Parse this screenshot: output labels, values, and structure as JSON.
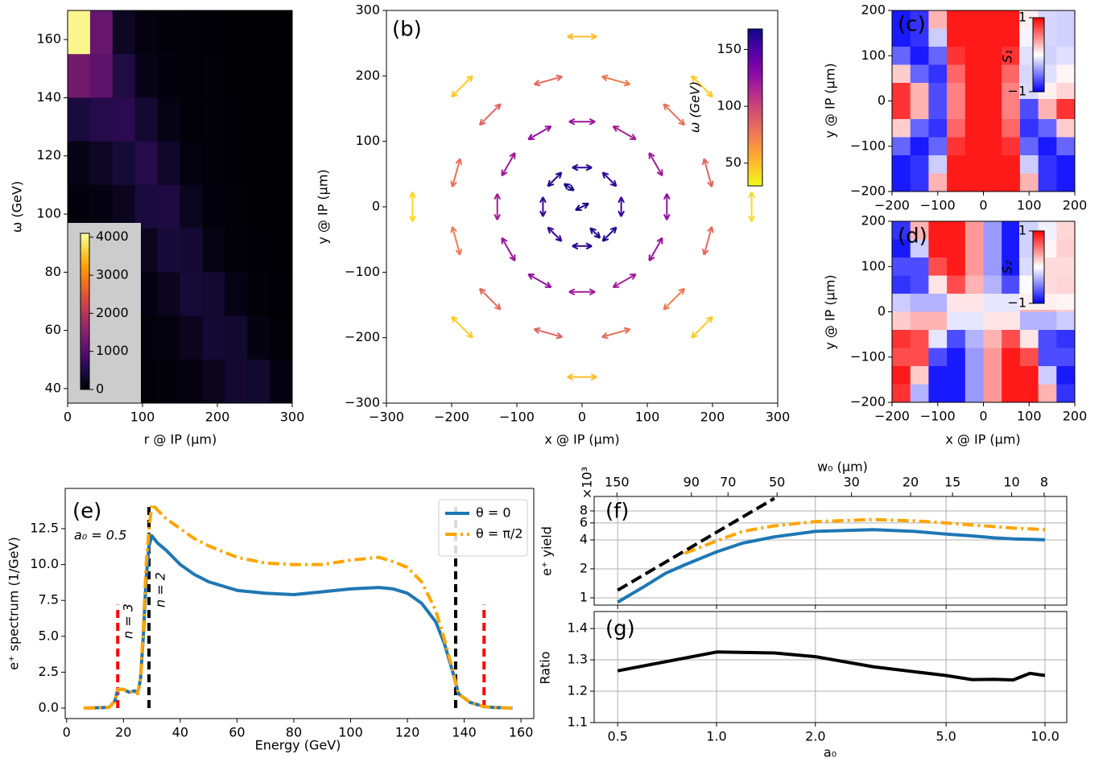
{
  "chart_data": [
    {
      "type": "heatmap",
      "panel_label": "(a)",
      "xlabel": "r @ IP (μm)",
      "ylabel": "ω (GeV)",
      "xlim": [
        0,
        300
      ],
      "ylim": [
        35,
        170
      ],
      "xticks": [
        0,
        100,
        200,
        300
      ],
      "yticks": [
        40,
        60,
        80,
        100,
        120,
        140,
        160
      ],
      "colormap": "inferno",
      "clim": [
        0,
        4100
      ],
      "cticks": [
        0,
        1000,
        2000,
        3000,
        4000
      ],
      "z": [
        [
          4000,
          1200,
          250,
          80,
          40,
          25,
          15,
          10,
          10,
          10
        ],
        [
          1300,
          1100,
          500,
          150,
          60,
          30,
          20,
          10,
          10,
          10
        ],
        [
          450,
          550,
          600,
          350,
          120,
          40,
          20,
          15,
          10,
          10
        ],
        [
          150,
          250,
          400,
          550,
          300,
          80,
          30,
          15,
          10,
          10
        ],
        [
          60,
          100,
          200,
          450,
          480,
          200,
          60,
          20,
          10,
          10
        ],
        [
          30,
          50,
          100,
          200,
          420,
          380,
          120,
          30,
          15,
          10
        ],
        [
          20,
          30,
          50,
          100,
          200,
          400,
          350,
          120,
          30,
          15
        ],
        [
          15,
          20,
          30,
          50,
          90,
          200,
          380,
          330,
          100,
          30
        ],
        [
          10,
          15,
          20,
          30,
          50,
          90,
          180,
          350,
          320,
          100
        ]
      ]
    },
    {
      "type": "quiver",
      "panel_label": "(b)",
      "xlabel": "x @ IP (μm)",
      "ylabel": "y @ IP (μm)",
      "xlim": [
        -300,
        300
      ],
      "ylim": [
        -300,
        300
      ],
      "xticks": [
        {
          "value": -300,
          "label": "−300"
        },
        {
          "value": -200,
          "label": "−200"
        },
        {
          "value": -100,
          "label": "−100"
        },
        0,
        100,
        200,
        300
      ],
      "yticks": [
        {
          "value": -300,
          "label": "−300"
        },
        {
          "value": -200,
          "label": "−200"
        },
        {
          "value": -100,
          "label": "−100"
        },
        0,
        100,
        200,
        300
      ],
      "colormap": "plasma_r",
      "clim": [
        30,
        168
      ],
      "cticks": [
        50,
        100,
        150
      ],
      "clabel": "ω (GeV)",
      "x": [
        60,
        42,
        0,
        -42,
        -60,
        -42,
        0,
        42,
        130,
        113,
        65,
        0,
        -65,
        -113,
        -130,
        -113,
        -65,
        0,
        65,
        113,
        193,
        141,
        52,
        -52,
        -141,
        -193,
        -193,
        -141,
        -52,
        52,
        141,
        193,
        260,
        184,
        0,
        -184,
        -260,
        -184,
        0,
        184,
        0,
        20,
        -20
      ],
      "y": [
        0,
        42,
        60,
        42,
        0,
        -42,
        -60,
        -42,
        0,
        65,
        113,
        130,
        113,
        65,
        0,
        -65,
        -113,
        -130,
        -113,
        -65,
        52,
        141,
        193,
        193,
        141,
        52,
        -52,
        -141,
        -193,
        -193,
        -141,
        -52,
        0,
        184,
        260,
        184,
        0,
        -184,
        -260,
        -184,
        0,
        -40,
        30
      ],
      "u": [
        0,
        -21,
        -30,
        -21,
        0,
        21,
        30,
        21,
        0,
        -20,
        -35,
        -40,
        -35,
        -20,
        0,
        20,
        35,
        40,
        35,
        20,
        -12,
        -32,
        -43,
        -43,
        -32,
        -12,
        12,
        32,
        43,
        43,
        32,
        12,
        0,
        -32,
        -45,
        -32,
        0,
        32,
        45,
        32,
        20,
        -15,
        15
      ],
      "v": [
        30,
        21,
        0,
        -21,
        -30,
        -21,
        0,
        21,
        40,
        35,
        20,
        0,
        -20,
        -35,
        -40,
        -35,
        -20,
        0,
        20,
        35,
        43,
        32,
        12,
        -12,
        -32,
        -43,
        -43,
        -32,
        -12,
        12,
        32,
        43,
        45,
        32,
        0,
        -32,
        -45,
        -32,
        0,
        32,
        10,
        15,
        -10
      ],
      "c": [
        155,
        158,
        160,
        162,
        155,
        158,
        160,
        162,
        125,
        120,
        118,
        122,
        125,
        120,
        118,
        122,
        125,
        120,
        118,
        122,
        85,
        80,
        75,
        82,
        85,
        80,
        75,
        82,
        85,
        80,
        75,
        82,
        40,
        45,
        50,
        45,
        40,
        45,
        50,
        45,
        165,
        163,
        166
      ]
    },
    {
      "type": "heatmap",
      "panel_label": "(c)",
      "xlabel": "x @ IP (μm)",
      "ylabel": "y @ IP (μm)",
      "xlim": [
        -200,
        200
      ],
      "ylim": [
        -200,
        200
      ],
      "xticks": [
        {
          "value": -200,
          "label": "−200"
        },
        {
          "value": -100,
          "label": "−100"
        },
        0,
        100,
        200
      ],
      "yticks": [
        {
          "value": -200,
          "label": "−200"
        },
        {
          "value": -100,
          "label": "−100"
        },
        0,
        100,
        200
      ],
      "colormap": "bwr",
      "clim": [
        -1,
        1
      ],
      "cticks": [
        {
          "value": -1,
          "label": "−1"
        },
        1
      ],
      "clabel": "S₁",
      "z": [
        [
          -0.9,
          -0.8,
          0.3,
          0.9,
          0.9,
          0.9,
          0.9,
          0.3,
          -0.8,
          -0.9
        ],
        [
          -0.9,
          -0.8,
          -0.2,
          0.9,
          0.9,
          0.9,
          0.9,
          -0.2,
          -0.8,
          -0.9
        ],
        [
          -0.6,
          -0.9,
          -0.6,
          0.8,
          0.9,
          0.9,
          0.8,
          -0.6,
          -0.9,
          -0.6
        ],
        [
          0.2,
          -0.6,
          -0.8,
          0.6,
          0.9,
          0.9,
          0.6,
          -0.8,
          -0.6,
          0.2
        ],
        [
          0.8,
          0.3,
          -0.7,
          0.5,
          0.9,
          0.9,
          0.5,
          -0.7,
          0.3,
          0.8
        ],
        [
          0.8,
          0.3,
          -0.7,
          0.5,
          0.9,
          0.9,
          0.5,
          -0.7,
          0.3,
          0.8
        ],
        [
          0.2,
          -0.6,
          -0.8,
          0.6,
          0.9,
          0.9,
          0.6,
          -0.8,
          -0.6,
          0.2
        ],
        [
          -0.6,
          -0.9,
          -0.6,
          0.8,
          0.9,
          0.9,
          0.8,
          -0.6,
          -0.9,
          -0.6
        ],
        [
          -0.9,
          -0.8,
          -0.2,
          0.9,
          0.9,
          0.9,
          0.9,
          -0.2,
          -0.8,
          -0.9
        ],
        [
          -0.9,
          -0.8,
          0.3,
          0.9,
          0.9,
          0.9,
          0.9,
          0.3,
          -0.8,
          -0.9
        ]
      ]
    },
    {
      "type": "heatmap",
      "panel_label": "(d)",
      "xlabel": "x @ IP (μm)",
      "ylabel": "y @ IP (μm)",
      "xlim": [
        -200,
        200
      ],
      "ylim": [
        -200,
        200
      ],
      "xticks": [
        {
          "value": -200,
          "label": "−200"
        },
        {
          "value": -100,
          "label": "−100"
        },
        0,
        100,
        200
      ],
      "yticks": [
        {
          "value": -200,
          "label": "−200"
        },
        {
          "value": -100,
          "label": "−100"
        },
        0,
        100,
        200
      ],
      "colormap": "bwr",
      "clim": [
        -1,
        1
      ],
      "cticks": [
        {
          "value": -1,
          "label": "−1"
        },
        1
      ],
      "clabel": "S₂",
      "z": [
        [
          -0.8,
          0.3,
          0.9,
          0.9,
          0.4,
          -0.4,
          -0.9,
          -0.9,
          -0.3,
          0.8
        ],
        [
          -0.9,
          -0.2,
          0.9,
          0.9,
          0.4,
          -0.4,
          -0.9,
          -0.9,
          0.2,
          0.9
        ],
        [
          -0.7,
          -0.7,
          0.7,
          0.9,
          0.4,
          -0.4,
          -0.9,
          -0.7,
          0.7,
          0.7
        ],
        [
          -0.8,
          -0.7,
          0.1,
          0.7,
          0.3,
          -0.3,
          -0.7,
          -0.1,
          0.7,
          0.8
        ],
        [
          -0.2,
          -0.3,
          -0.3,
          0.1,
          0.1,
          -0.1,
          -0.1,
          0.3,
          0.3,
          0.2
        ],
        [
          0.2,
          0.3,
          0.3,
          -0.1,
          -0.1,
          0.1,
          0.1,
          -0.3,
          -0.3,
          -0.2
        ],
        [
          0.8,
          0.7,
          -0.1,
          -0.7,
          -0.3,
          0.3,
          0.7,
          0.1,
          -0.7,
          -0.8
        ],
        [
          0.7,
          0.7,
          -0.7,
          -0.9,
          -0.4,
          0.4,
          0.9,
          0.7,
          -0.7,
          -0.7
        ],
        [
          0.9,
          0.2,
          -0.9,
          -0.9,
          -0.4,
          0.4,
          0.9,
          0.9,
          -0.2,
          -0.9
        ],
        [
          0.8,
          -0.3,
          -0.9,
          -0.9,
          -0.4,
          0.4,
          0.9,
          0.9,
          0.3,
          -0.8
        ]
      ]
    },
    {
      "type": "line",
      "panel_label": "(e)",
      "xlabel": "Energy (GeV)",
      "ylabel": "e⁺ spectrum (1/GeV)",
      "xlim": [
        -0.5,
        164.5
      ],
      "ylim": [
        -0.73,
        15.3
      ],
      "xticks": [
        0,
        20,
        40,
        60,
        80,
        100,
        120,
        140,
        160
      ],
      "yticks": [
        {
          "value": 0,
          "label": "0.0"
        },
        2.5,
        {
          "value": 5,
          "label": "5.0"
        },
        7.5,
        {
          "value": 10,
          "label": "10.0"
        },
        12.5
      ],
      "legend": "upper right",
      "annotations": [
        "a₀ = 0.5",
        "n = 3",
        "n = 2"
      ],
      "x": [
        6,
        15,
        17,
        18,
        20,
        22,
        24,
        25,
        26,
        27,
        28,
        29,
        30,
        32,
        35,
        40,
        45,
        50,
        60,
        70,
        80,
        90,
        100,
        110,
        115,
        120,
        125,
        130,
        133,
        136,
        138,
        142,
        147,
        150,
        157
      ],
      "series": [
        {
          "name": "θ = 0",
          "color": "#1f77b4",
          "style": "solid",
          "values": [
            0,
            0.05,
            0.5,
            1.3,
            1.3,
            1.1,
            1.2,
            1.0,
            2,
            5,
            9,
            11.3,
            12,
            11.5,
            11,
            10,
            9.3,
            8.8,
            8.2,
            8.0,
            7.9,
            8.1,
            8.3,
            8.4,
            8.3,
            8.0,
            7.3,
            6.0,
            4.5,
            2.5,
            1.0,
            0.4,
            0.1,
            0.05,
            0
          ]
        },
        {
          "name": "θ = π/2",
          "color": "#ffa500",
          "style": "dashdot",
          "values": [
            0,
            0.05,
            0.5,
            1.3,
            1.3,
            1.1,
            1.2,
            1.0,
            2,
            5.5,
            10,
            12.5,
            14.2,
            13.8,
            13.2,
            12.5,
            11.8,
            11.3,
            10.5,
            10.1,
            10.0,
            10.0,
            10.3,
            10.5,
            10.2,
            9.8,
            8.8,
            6.8,
            4.8,
            2.6,
            1.0,
            0.4,
            0.1,
            0.05,
            0
          ]
        }
      ],
      "vlines": [
        {
          "x": 18,
          "ymax": 7.2,
          "color": "#ff0000"
        },
        {
          "x": 147,
          "ymax": 7.2,
          "color": "#ff0000"
        },
        {
          "x": 29,
          "ymax": 14.3,
          "color": "#000000"
        },
        {
          "x": 137,
          "ymax": 14.3,
          "color": "#000000"
        }
      ]
    },
    {
      "type": "line",
      "panel_label": "(f)",
      "ylabel": "e⁺ yield",
      "offset_label": "×10³",
      "xlog": true,
      "ylog": true,
      "grid": true,
      "xlim": [
        0.424,
        11.65
      ],
      "ylim": [
        0.84,
        11.3
      ],
      "yticks": [
        1,
        2,
        4,
        6,
        8
      ],
      "x2label": "w₀ (μm)",
      "x2log": true,
      "x2lim": [
        175.4,
        6.85
      ],
      "x2ticks": [
        150,
        90,
        70,
        50,
        30,
        20,
        15,
        10,
        8
      ],
      "series": [
        {
          "color": "#1f77b4",
          "style": "solid",
          "x": [
            0.5,
            0.6,
            0.7,
            0.8,
            1.0,
            1.2,
            1.5,
            2,
            3,
            4,
            5,
            6,
            7,
            8,
            9,
            10
          ],
          "values": [
            0.9,
            1.3,
            1.8,
            2.2,
            3.0,
            3.7,
            4.3,
            4.9,
            5.1,
            4.9,
            4.6,
            4.4,
            4.2,
            4.1,
            4.05,
            4.0
          ]
        },
        {
          "color": "#ffa500",
          "style": "dashdot",
          "x": [
            0.8,
            1.0,
            1.2,
            1.5,
            2,
            3,
            4,
            5,
            6,
            7,
            8,
            9,
            10
          ],
          "values": [
            2.9,
            3.9,
            4.9,
            5.6,
            6.2,
            6.5,
            6.3,
            6.0,
            5.7,
            5.5,
            5.3,
            5.2,
            5.1
          ]
        },
        {
          "color": "#000000",
          "style": "dashed",
          "x": [
            0.5,
            1.5
          ],
          "values": [
            1.2,
            10.8
          ]
        }
      ]
    },
    {
      "type": "line",
      "panel_label": "(g)",
      "xlabel": "a₀",
      "ylabel": "Ratio",
      "xlog": true,
      "grid": true,
      "xlim": [
        0.424,
        11.65
      ],
      "ylim": [
        1.1,
        1.454
      ],
      "xticks": [
        0.5,
        {
          "value": 1,
          "label": "1.0"
        },
        {
          "value": 2,
          "label": "2.0"
        },
        {
          "value": 5,
          "label": "5.0"
        },
        {
          "value": 10,
          "label": "10.0"
        }
      ],
      "yticks": [
        1.1,
        1.2,
        1.3,
        1.4
      ],
      "series": [
        {
          "color": "#000000",
          "style": "solid",
          "x": [
            0.5,
            1,
            1.5,
            2,
            3,
            4,
            5,
            6,
            7,
            8,
            9,
            10
          ],
          "values": [
            1.265,
            1.325,
            1.322,
            1.31,
            1.278,
            1.262,
            1.25,
            1.237,
            1.238,
            1.236,
            1.257,
            1.25
          ]
        }
      ]
    }
  ]
}
